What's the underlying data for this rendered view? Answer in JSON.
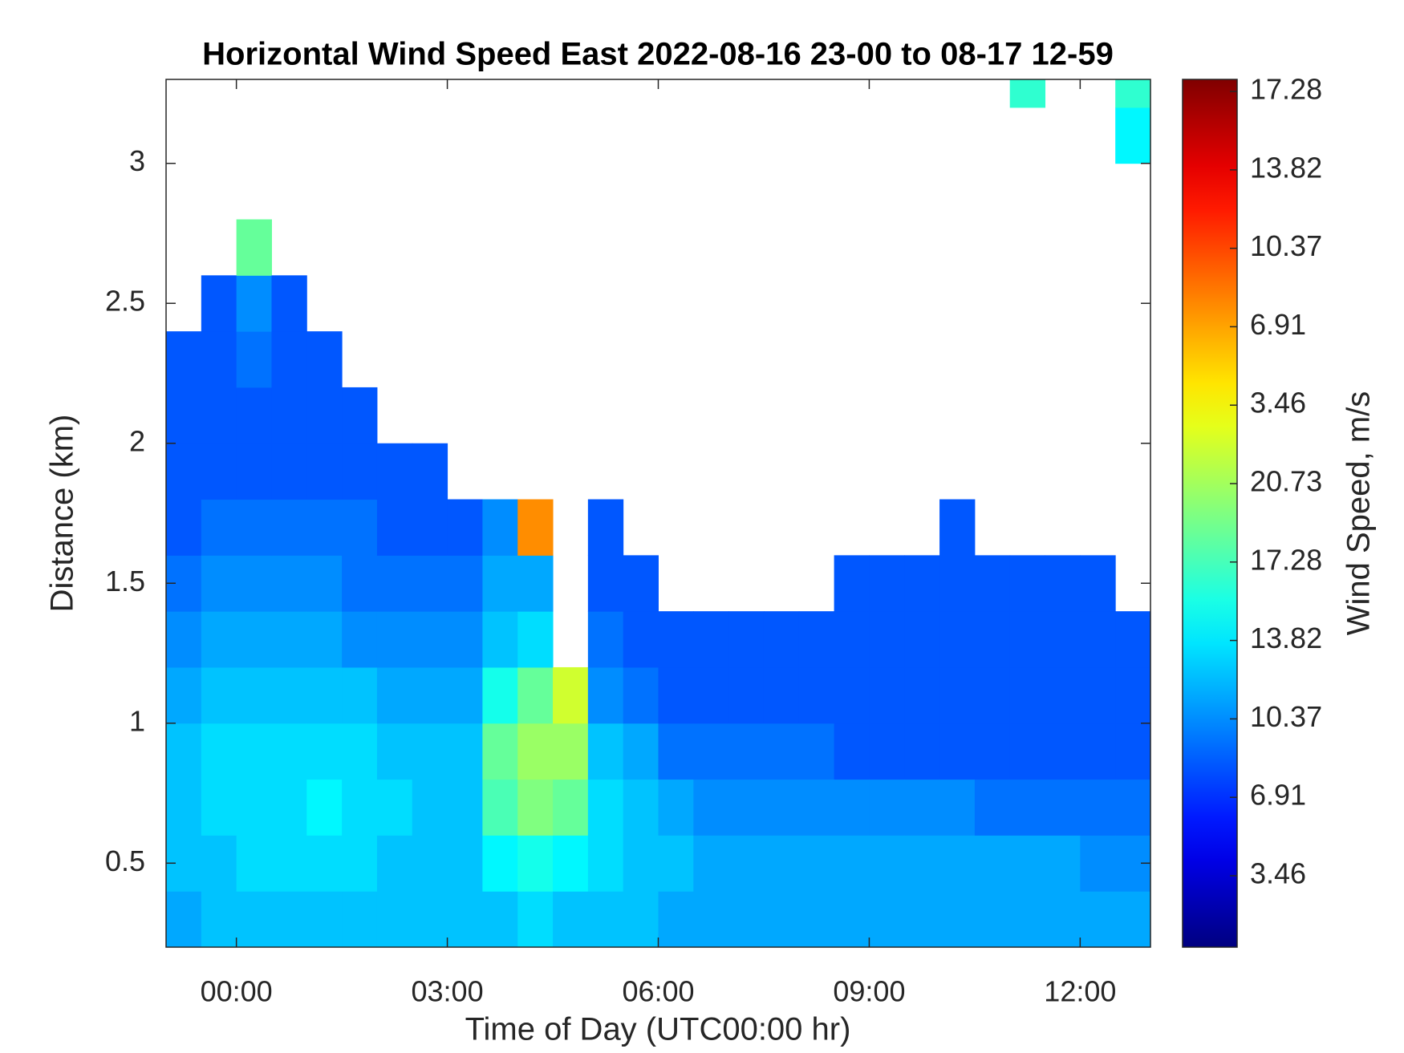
{
  "chart_data": {
    "type": "heatmap",
    "title": "Horizontal Wind Speed East 2022-08-16 23-00 to 08-17 12-59",
    "xlabel": "Time of Day (UTC00:00 hr)",
    "ylabel": "Distance (km)",
    "colorbar_label": "Wind Speed, m/s",
    "colorbar_labels": [
      "17.28",
      "13.82",
      "10.37",
      "6.91",
      "3.46",
      "20.73",
      "17.28",
      "13.82",
      "10.37",
      "6.91",
      "3.46"
    ],
    "colormap": "jet",
    "clim": [
      0,
      38
    ],
    "xlim": [
      -1,
      13
    ],
    "ylim": [
      0.2,
      3.3
    ],
    "xticks": [
      {
        "value": 0,
        "label": "00:00"
      },
      {
        "value": 3,
        "label": "03:00"
      },
      {
        "value": 6,
        "label": "06:00"
      },
      {
        "value": 9,
        "label": "09:00"
      },
      {
        "value": 12,
        "label": "12:00"
      }
    ],
    "yticks": [
      0.5,
      1,
      1.5,
      2,
      2.5,
      3
    ],
    "xbins": [
      -1,
      -0.5,
      0,
      0.5,
      1,
      1.5,
      2,
      2.5,
      3,
      3.5,
      4,
      4.5,
      5,
      5.5,
      6,
      6.5,
      7,
      7.5,
      8,
      8.5,
      9,
      9.5,
      10,
      10.5,
      11,
      11.5,
      12,
      12.5,
      13
    ],
    "ybins": [
      0.2,
      0.4,
      0.6,
      0.8,
      1.0,
      1.2,
      1.4,
      1.6,
      1.8,
      2.0,
      2.2,
      2.4,
      2.6,
      2.8,
      3.0,
      3.2,
      3.3
    ],
    "values": [
      [
        11,
        12,
        12,
        12,
        11,
        10,
        9,
        8,
        8,
        8,
        8,
        null,
        null,
        null,
        null,
        null
      ],
      [
        12,
        12,
        13,
        13,
        12,
        11,
        10,
        9,
        8,
        8,
        8,
        8,
        null,
        null,
        null,
        null
      ],
      [
        12,
        13,
        13,
        13,
        12,
        11,
        10,
        9,
        8,
        8,
        9,
        10,
        18,
        null,
        null,
        null
      ],
      [
        12,
        13,
        13,
        13,
        12,
        11,
        10,
        9,
        8,
        8,
        8,
        8,
        null,
        null,
        null,
        null
      ],
      [
        12,
        13,
        14,
        13,
        12,
        11,
        10,
        9,
        8,
        8,
        8,
        null,
        null,
        null,
        null,
        null
      ],
      [
        12,
        13,
        13,
        13,
        12,
        10,
        9,
        9,
        8,
        8,
        null,
        null,
        null,
        null,
        null,
        null
      ],
      [
        12,
        12,
        13,
        12,
        11,
        10,
        9,
        8,
        8,
        null,
        null,
        null,
        null,
        null,
        null,
        null
      ],
      [
        12,
        12,
        12,
        12,
        11,
        10,
        9,
        8,
        8,
        null,
        null,
        null,
        null,
        null,
        null,
        null
      ],
      [
        12,
        12,
        12,
        12,
        11,
        10,
        9,
        8,
        null,
        null,
        null,
        null,
        null,
        null,
        null,
        null
      ],
      [
        12,
        14,
        17,
        18,
        15,
        12,
        11,
        10,
        null,
        null,
        null,
        null,
        null,
        null,
        null,
        null
      ],
      [
        13,
        15,
        19,
        20,
        18,
        13,
        11,
        28,
        null,
        null,
        null,
        null,
        null,
        null,
        null,
        null
      ],
      [
        12,
        14,
        18,
        20,
        22,
        null,
        null,
        null,
        null,
        null,
        null,
        null,
        null,
        null,
        null,
        null
      ],
      [
        12,
        13,
        13,
        12,
        10,
        9,
        8,
        8,
        null,
        null,
        null,
        null,
        null,
        null,
        null,
        null
      ],
      [
        12,
        12,
        12,
        11,
        9,
        8,
        8,
        null,
        null,
        null,
        null,
        null,
        null,
        null,
        null,
        null
      ],
      [
        11,
        12,
        11,
        9,
        8,
        8,
        null,
        null,
        null,
        null,
        null,
        null,
        null,
        null,
        null,
        null
      ],
      [
        11,
        11,
        10,
        9,
        8,
        8,
        null,
        null,
        null,
        null,
        null,
        null,
        null,
        null,
        null,
        null
      ],
      [
        11,
        11,
        10,
        9,
        8,
        8,
        null,
        null,
        null,
        null,
        null,
        null,
        null,
        null,
        null,
        null
      ],
      [
        11,
        11,
        10,
        9,
        8,
        8,
        null,
        null,
        null,
        null,
        null,
        null,
        null,
        null,
        null,
        null
      ],
      [
        11,
        11,
        10,
        9,
        8,
        8,
        null,
        null,
        null,
        null,
        null,
        null,
        null,
        null,
        null,
        null
      ],
      [
        11,
        11,
        10,
        8,
        8,
        8,
        8,
        null,
        null,
        null,
        null,
        null,
        null,
        null,
        null,
        null
      ],
      [
        11,
        11,
        10,
        8,
        8,
        8,
        8,
        null,
        null,
        null,
        null,
        null,
        null,
        null,
        null,
        null
      ],
      [
        11,
        11,
        10,
        8,
        8,
        8,
        8,
        null,
        null,
        null,
        null,
        null,
        null,
        null,
        null,
        null
      ],
      [
        11,
        11,
        10,
        8,
        8,
        8,
        8,
        8,
        null,
        null,
        null,
        null,
        null,
        null,
        null,
        null
      ],
      [
        11,
        11,
        9,
        8,
        8,
        8,
        8,
        null,
        null,
        null,
        null,
        null,
        null,
        null,
        null,
        null
      ],
      [
        11,
        11,
        9,
        8,
        8,
        8,
        8,
        null,
        null,
        null,
        null,
        null,
        null,
        null,
        null,
        16
      ],
      [
        11,
        11,
        9,
        8,
        8,
        8,
        8,
        null,
        null,
        null,
        null,
        null,
        null,
        null,
        null,
        null
      ],
      [
        11,
        10,
        9,
        8,
        8,
        8,
        8,
        null,
        null,
        null,
        null,
        null,
        null,
        null,
        null,
        null
      ],
      [
        11,
        10,
        9,
        8,
        8,
        8,
        null,
        null,
        null,
        null,
        null,
        null,
        null,
        null,
        14,
        16
      ]
    ]
  }
}
